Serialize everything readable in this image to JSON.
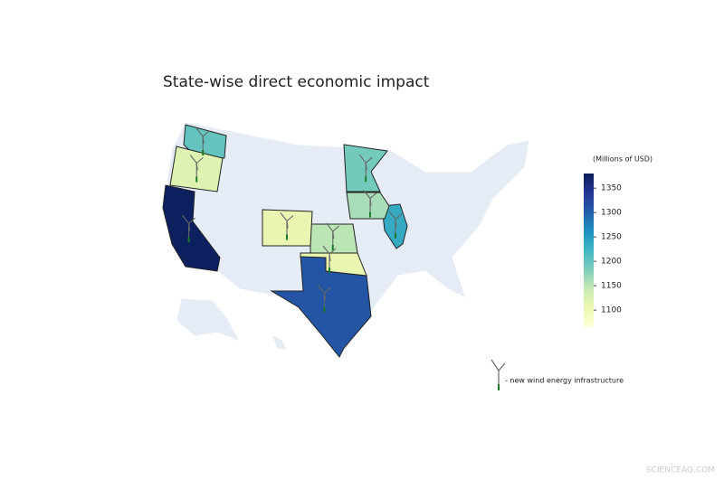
{
  "chart_data": {
    "type": "choropleth",
    "title": "State-wise direct economic impact",
    "colorbar_title": "(Millions of USD)",
    "values": [
      1375,
      1310,
      1235,
      1200,
      1190,
      1160,
      1150,
      1120,
      1110,
      1110
    ],
    "colorscale": [
      "#ffffd9",
      "#edf8b1",
      "#c7e9b4",
      "#7fcdbb",
      "#41b6c4",
      "#1d91c0",
      "#225ea8",
      "#253494",
      "#081d58"
    ],
    "colorlim": [
      1065,
      1380
    ],
    "colorticks": [
      1100,
      1150,
      1200,
      1250,
      1300,
      1350
    ],
    "legend_text": "- new wind energy infrastructure",
    "watermark": "SCIENCEAQ.COM"
  }
}
